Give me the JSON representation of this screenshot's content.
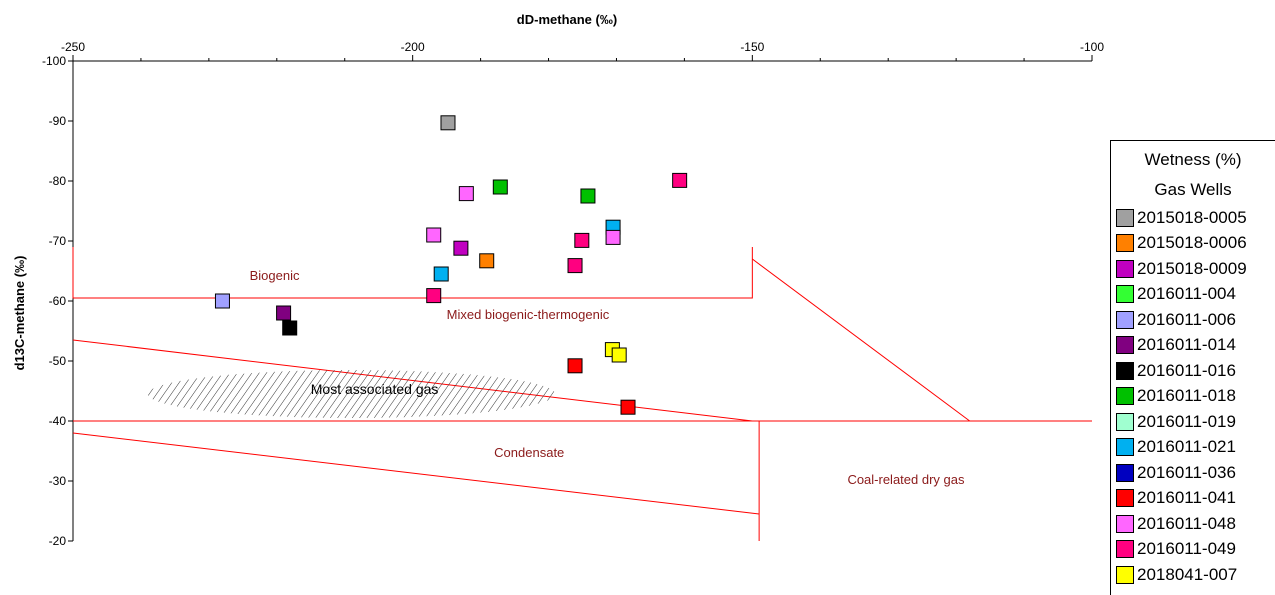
{
  "chart_data": {
    "type": "scatter",
    "xlabel": "dD-methane (‰)",
    "ylabel": "d13C-methane (‰)",
    "xlim": [
      -250,
      -100
    ],
    "ylim": [
      -100,
      -20
    ],
    "x_ticks": [
      "-250",
      "-200",
      "-150",
      "-100"
    ],
    "y_ticks": [
      "-100",
      "-90",
      "-80",
      "-70",
      "-60",
      "-50",
      "-40",
      "-30",
      "-20"
    ],
    "x_tick_values": [
      -250,
      -200,
      -150,
      -100
    ],
    "y_tick_values": [
      -100,
      -90,
      -80,
      -70,
      -60,
      -50,
      -40,
      -30,
      -20
    ],
    "grid": false,
    "legend_position": "right",
    "legend_title": "Wetness (%)",
    "legend_subtitle": "Gas Wells",
    "region_labels": [
      {
        "text": "Biogenic",
        "x": -224,
        "y": -63.5
      },
      {
        "text": "Mixed biogenic-thermogenic",
        "x": -195,
        "y": -57
      },
      {
        "text": "Most associated gas",
        "x": -215,
        "y": -44.5
      },
      {
        "text": "Condensate",
        "x": -188,
        "y": -34
      },
      {
        "text": "Coal-related dry gas",
        "x": -136,
        "y": -29.5
      }
    ],
    "boundaries": [
      {
        "name": "biogenic-box",
        "points": [
          [
            -250,
            -69
          ],
          [
            -250,
            -60.5
          ],
          [
            -150,
            -60.5
          ],
          [
            -150,
            -69
          ]
        ]
      },
      {
        "name": "mixed-lower-line",
        "points": [
          [
            -250,
            -53.5
          ],
          [
            -150,
            -40
          ]
        ]
      },
      {
        "name": "horizontal-40-line",
        "points": [
          [
            -250,
            -40
          ],
          [
            -100,
            -40
          ]
        ]
      },
      {
        "name": "condensate-lower-line",
        "points": [
          [
            -250,
            -38
          ],
          [
            -149,
            -24.5
          ]
        ]
      },
      {
        "name": "coal-vertical-line",
        "points": [
          [
            -149,
            -40
          ],
          [
            -149,
            -20
          ]
        ]
      },
      {
        "name": "coal-diagonal-line",
        "points": [
          [
            -150,
            -67
          ],
          [
            -118,
            -40
          ]
        ]
      }
    ],
    "associated_gas_area": {
      "cx": -209,
      "cy": -44.5,
      "rx": 30,
      "ry": 4
    },
    "series": [
      {
        "name": "2015018-0005",
        "color": "#a0a0a0",
        "points": [
          [
            -194.8,
            -89.7
          ]
        ]
      },
      {
        "name": "2015018-0006",
        "color": "#ff8000",
        "points": [
          [
            -189.1,
            -66.7
          ]
        ]
      },
      {
        "name": "2015018-0009",
        "color": "#c000c0",
        "points": [
          [
            -192.9,
            -68.8
          ]
        ]
      },
      {
        "name": "2016011-004",
        "color": "#33ff33",
        "points": []
      },
      {
        "name": "2016011-006",
        "color": "#a0a0ff",
        "points": [
          [
            -228,
            -60
          ]
        ]
      },
      {
        "name": "2016011-014",
        "color": "#800080",
        "points": [
          [
            -219,
            -58
          ]
        ]
      },
      {
        "name": "2016011-016",
        "color": "#000000",
        "points": [
          [
            -218.1,
            -55.5
          ]
        ]
      },
      {
        "name": "2016011-018",
        "color": "#00c000",
        "points": [
          [
            -187.1,
            -79
          ],
          [
            -174.2,
            -77.5
          ]
        ]
      },
      {
        "name": "2016011-019",
        "color": "#a0ffd0",
        "points": []
      },
      {
        "name": "2016011-021",
        "color": "#00b0f0",
        "points": [
          [
            -170.5,
            -72.3
          ],
          [
            -195.8,
            -64.5
          ]
        ]
      },
      {
        "name": "2016011-036",
        "color": "#0000c0",
        "points": []
      },
      {
        "name": "2016011-041",
        "color": "#ff0000",
        "points": [
          [
            -176.1,
            -49.2
          ],
          [
            -168.3,
            -42.3
          ]
        ]
      },
      {
        "name": "2016011-048",
        "color": "#ff66ff",
        "points": [
          [
            -192.1,
            -77.9
          ],
          [
            -196.9,
            -71
          ],
          [
            -170.5,
            -70.6
          ]
        ]
      },
      {
        "name": "2016011-049",
        "color": "#ff0080",
        "points": [
          [
            -160.7,
            -80.1
          ],
          [
            -175.1,
            -70.1
          ],
          [
            -176.1,
            -65.9
          ],
          [
            -196.9,
            -60.9
          ]
        ]
      },
      {
        "name": "2018041-007",
        "color": "#ffff00",
        "points": [
          [
            -170.6,
            -51.9
          ],
          [
            -169.6,
            -51
          ]
        ]
      }
    ]
  }
}
